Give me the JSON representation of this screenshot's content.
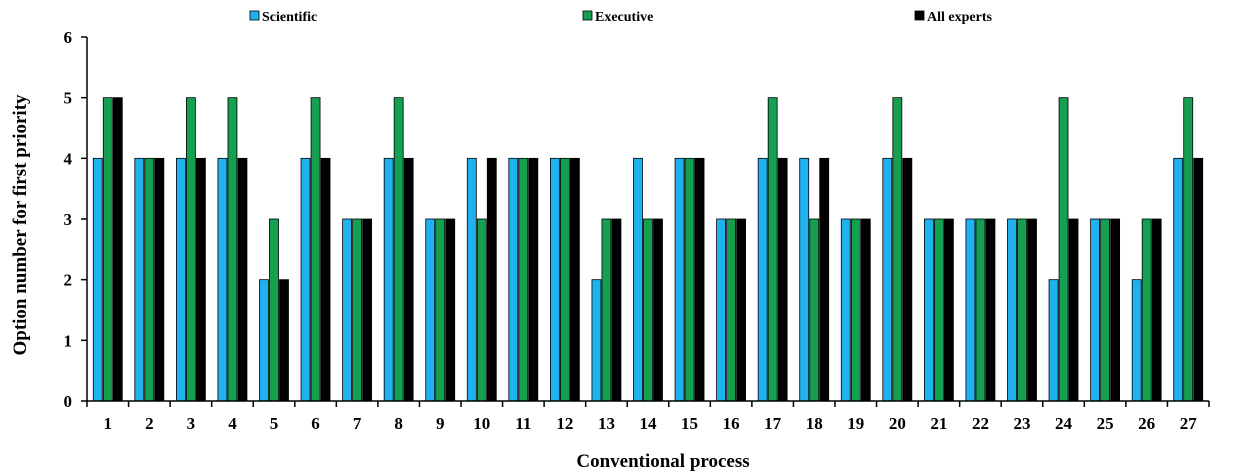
{
  "chart_data": {
    "type": "bar",
    "title": "",
    "xlabel": "Conventional process",
    "ylabel": "Option number for first priority",
    "ylim": [
      0,
      6
    ],
    "yticks": [
      "0",
      "1",
      "2",
      "3",
      "4",
      "5",
      "6"
    ],
    "grid": false,
    "legend_position": "top",
    "categories": [
      "1",
      "2",
      "3",
      "4",
      "5",
      "6",
      "7",
      "8",
      "9",
      "10",
      "11",
      "12",
      "13",
      "14",
      "15",
      "16",
      "17",
      "18",
      "19",
      "20",
      "21",
      "22",
      "23",
      "24",
      "25",
      "26",
      "27"
    ],
    "series": [
      {
        "name": "Scientific",
        "color": "#1fb2ee",
        "values": [
          4,
          4,
          4,
          4,
          2,
          4,
          3,
          4,
          3,
          4,
          4,
          4,
          2,
          4,
          4,
          3,
          4,
          4,
          3,
          4,
          3,
          3,
          3,
          2,
          3,
          2,
          4
        ]
      },
      {
        "name": "Executive",
        "color": "#14a050",
        "values": [
          5,
          4,
          5,
          5,
          3,
          5,
          3,
          5,
          3,
          3,
          4,
          4,
          3,
          3,
          4,
          3,
          5,
          3,
          3,
          5,
          3,
          3,
          3,
          5,
          3,
          3,
          5
        ]
      },
      {
        "name": "All experts",
        "color": "#000000",
        "values": [
          5,
          4,
          4,
          4,
          2,
          4,
          3,
          4,
          3,
          4,
          4,
          4,
          3,
          3,
          4,
          3,
          4,
          4,
          3,
          4,
          3,
          3,
          3,
          3,
          3,
          3,
          4
        ]
      }
    ]
  }
}
